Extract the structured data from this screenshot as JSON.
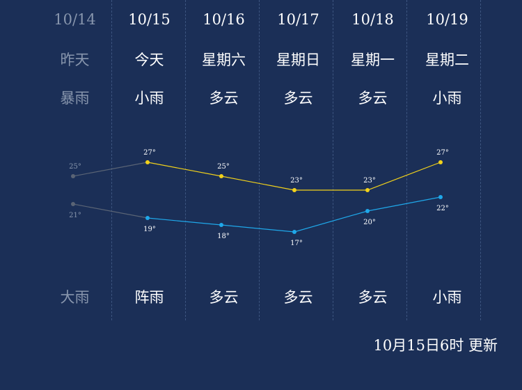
{
  "days": [
    {
      "date": "10/14",
      "weekday": "昨天",
      "weather_day": "暴雨",
      "weather_night": "大雨",
      "high": 25,
      "low": 21,
      "high_label": "25°",
      "low_label": "21°",
      "past": true
    },
    {
      "date": "10/15",
      "weekday": "今天",
      "weather_day": "小雨",
      "weather_night": "阵雨",
      "high": 27,
      "low": 19,
      "high_label": "27°",
      "low_label": "19°",
      "past": false
    },
    {
      "date": "10/16",
      "weekday": "星期六",
      "weather_day": "多云",
      "weather_night": "多云",
      "high": 25,
      "low": 18,
      "high_label": "25°",
      "low_label": "18°",
      "past": false
    },
    {
      "date": "10/17",
      "weekday": "星期日",
      "weather_day": "多云",
      "weather_night": "多云",
      "high": 23,
      "low": 17,
      "high_label": "23°",
      "low_label": "17°",
      "past": false
    },
    {
      "date": "10/18",
      "weekday": "星期一",
      "weather_day": "多云",
      "weather_night": "多云",
      "high": 23,
      "low": 20,
      "high_label": "23°",
      "low_label": "20°",
      "past": false
    },
    {
      "date": "10/19",
      "weekday": "星期二",
      "weather_day": "小雨",
      "weather_night": "小雨",
      "high": 27,
      "low": 22,
      "high_label": "27°",
      "low_label": "22°",
      "past": false
    }
  ],
  "updated_text": "10月15日6时 更新",
  "colors": {
    "background": "#1b2f57",
    "high_line": "#f2d21b",
    "low_line": "#1fa8ea",
    "past_line": "#5a6475",
    "past_text": "#8896ad"
  },
  "chart_data": {
    "type": "line",
    "categories": [
      "10/14",
      "10/15",
      "10/16",
      "10/17",
      "10/18",
      "10/19"
    ],
    "series": [
      {
        "values": [
          25,
          27,
          25,
          23,
          23,
          27
        ]
      },
      {
        "values": [
          21,
          19,
          18,
          17,
          20,
          22
        ]
      }
    ]
  }
}
